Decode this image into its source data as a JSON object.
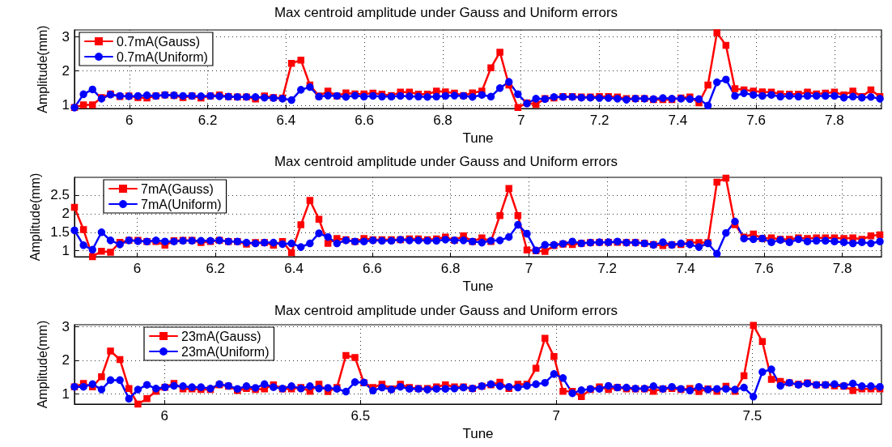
{
  "chart_data": [
    {
      "type": "line",
      "title": "Max centroid amplitude under Gauss and Uniform errors",
      "xlabel": "Tune",
      "ylabel": "Amplitude(mm)",
      "x": [
        5.86,
        5.883,
        5.906,
        5.929,
        5.952,
        5.976,
        5.999,
        6.022,
        6.045,
        6.068,
        6.091,
        6.114,
        6.137,
        6.16,
        6.183,
        6.207,
        6.23,
        6.253,
        6.276,
        6.299,
        6.322,
        6.345,
        6.368,
        6.391,
        6.414,
        6.438,
        6.461,
        6.484,
        6.507,
        6.53,
        6.553,
        6.576,
        6.599,
        6.622,
        6.645,
        6.669,
        6.692,
        6.715,
        6.738,
        6.761,
        6.784,
        6.807,
        6.83,
        6.853,
        6.876,
        6.9,
        6.923,
        6.946,
        6.969,
        6.992,
        7.015,
        7.038,
        7.061,
        7.084,
        7.107,
        7.131,
        7.154,
        7.177,
        7.2,
        7.223,
        7.246,
        7.269,
        7.292,
        7.315,
        7.338,
        7.362,
        7.385,
        7.408,
        7.431,
        7.454,
        7.477,
        7.5,
        7.523,
        7.546,
        7.569,
        7.593,
        7.616,
        7.639,
        7.662,
        7.685,
        7.708,
        7.731,
        7.754,
        7.777,
        7.8,
        7.824,
        7.847,
        7.87,
        7.893,
        7.916
      ],
      "series": [
        {
          "name": "0.7mA(Gauss)",
          "color": "#ff0000",
          "marker": "square",
          "values": [
            0.93,
            1.01,
            1.01,
            1.22,
            1.33,
            1.25,
            1.27,
            1.22,
            1.21,
            1.27,
            1.3,
            1.28,
            1.22,
            1.27,
            1.21,
            1.27,
            1.3,
            1.25,
            1.24,
            1.24,
            1.18,
            1.27,
            1.22,
            1.21,
            2.22,
            2.32,
            1.59,
            1.27,
            1.41,
            1.27,
            1.36,
            1.33,
            1.33,
            1.35,
            1.32,
            1.28,
            1.38,
            1.38,
            1.32,
            1.32,
            1.41,
            1.39,
            1.35,
            1.28,
            1.36,
            1.41,
            2.09,
            2.55,
            1.59,
            0.93,
            1.07,
            1.02,
            1.19,
            1.21,
            1.25,
            1.25,
            1.24,
            1.24,
            1.25,
            1.25,
            1.24,
            1.19,
            1.19,
            1.19,
            1.16,
            1.16,
            1.16,
            1.21,
            1.24,
            1.07,
            1.59,
            3.12,
            2.75,
            1.48,
            1.45,
            1.41,
            1.39,
            1.38,
            1.33,
            1.32,
            1.32,
            1.38,
            1.33,
            1.35,
            1.38,
            1.3,
            1.41,
            1.25,
            1.45,
            1.25
          ]
        },
        {
          "name": "0.7mA(Uniform)",
          "color": "#0000ff",
          "marker": "circle",
          "values": [
            0.93,
            1.32,
            1.46,
            1.19,
            1.31,
            1.27,
            1.26,
            1.27,
            1.29,
            1.27,
            1.3,
            1.29,
            1.27,
            1.27,
            1.26,
            1.27,
            1.26,
            1.25,
            1.24,
            1.24,
            1.24,
            1.22,
            1.21,
            1.19,
            1.15,
            1.45,
            1.53,
            1.25,
            1.28,
            1.27,
            1.24,
            1.28,
            1.25,
            1.27,
            1.25,
            1.25,
            1.27,
            1.26,
            1.25,
            1.24,
            1.25,
            1.27,
            1.28,
            1.27,
            1.24,
            1.3,
            1.25,
            1.5,
            1.68,
            1.32,
            1.05,
            1.19,
            1.18,
            1.24,
            1.24,
            1.24,
            1.22,
            1.22,
            1.21,
            1.21,
            1.19,
            1.16,
            1.19,
            1.19,
            1.18,
            1.21,
            1.19,
            1.19,
            1.18,
            1.18,
            0.99,
            1.67,
            1.75,
            1.27,
            1.35,
            1.3,
            1.27,
            1.3,
            1.25,
            1.27,
            1.25,
            1.27,
            1.27,
            1.27,
            1.27,
            1.22,
            1.25,
            1.22,
            1.24,
            1.19
          ]
        }
      ],
      "xlim": [
        5.86,
        7.92
      ],
      "xticks": [
        6,
        6.2,
        6.4,
        6.6,
        6.8,
        7,
        7.2,
        7.4,
        7.6,
        7.8
      ],
      "ylim": [
        0.9,
        3.2
      ],
      "yticks": [
        1,
        2,
        3
      ],
      "grid": true,
      "legend": "top left",
      "line_style": "solid"
    },
    {
      "type": "line",
      "title": "Max centroid amplitude under Gauss and Uniform errors",
      "xlabel": "Tune",
      "ylabel": "Amplitude(mm)",
      "x": [
        5.84,
        5.863,
        5.886,
        5.909,
        5.932,
        5.956,
        5.979,
        6.002,
        6.025,
        6.048,
        6.071,
        6.094,
        6.117,
        6.14,
        6.163,
        6.187,
        6.21,
        6.233,
        6.256,
        6.279,
        6.302,
        6.325,
        6.348,
        6.371,
        6.394,
        6.418,
        6.441,
        6.464,
        6.487,
        6.51,
        6.533,
        6.556,
        6.579,
        6.602,
        6.625,
        6.649,
        6.672,
        6.695,
        6.718,
        6.741,
        6.764,
        6.787,
        6.81,
        6.833,
        6.856,
        6.88,
        6.903,
        6.926,
        6.949,
        6.972,
        6.995,
        7.018,
        7.041,
        7.064,
        7.087,
        7.111,
        7.134,
        7.157,
        7.18,
        7.203,
        7.226,
        7.249,
        7.272,
        7.295,
        7.318,
        7.342,
        7.365,
        7.388,
        7.411,
        7.434,
        7.457,
        7.48,
        7.503,
        7.526,
        7.549,
        7.573,
        7.596,
        7.619,
        7.642,
        7.665,
        7.688,
        7.711,
        7.734,
        7.757,
        7.78,
        7.804,
        7.827,
        7.85,
        7.873,
        7.896
      ],
      "series": [
        {
          "name": "7mA(Gauss)",
          "color": "#ff0000",
          "marker": "square",
          "values": [
            2.17,
            1.57,
            0.84,
            0.99,
            0.96,
            1.23,
            1.28,
            1.28,
            1.25,
            1.25,
            1.15,
            1.27,
            1.28,
            1.28,
            1.22,
            1.25,
            1.28,
            1.25,
            1.25,
            1.18,
            1.22,
            1.22,
            1.15,
            1.25,
            0.95,
            1.7,
            2.36,
            1.85,
            1.2,
            1.33,
            1.3,
            1.25,
            1.33,
            1.3,
            1.3,
            1.3,
            1.3,
            1.32,
            1.32,
            1.3,
            1.32,
            1.37,
            1.28,
            1.4,
            1.25,
            1.35,
            1.25,
            1.95,
            2.68,
            1.95,
            1.02,
            1.0,
            0.98,
            1.14,
            1.18,
            1.17,
            1.2,
            1.22,
            1.23,
            1.23,
            1.23,
            1.22,
            1.22,
            1.2,
            1.17,
            1.14,
            1.16,
            1.17,
            1.22,
            1.22,
            1.22,
            2.85,
            2.96,
            1.7,
            1.37,
            1.45,
            1.33,
            1.35,
            1.31,
            1.31,
            1.35,
            1.33,
            1.35,
            1.35,
            1.35,
            1.33,
            1.35,
            1.31,
            1.4,
            1.43
          ]
        },
        {
          "name": "7mA(Uniform)",
          "color": "#0000ff",
          "marker": "circle",
          "values": [
            1.55,
            1.15,
            1.03,
            1.5,
            1.28,
            1.17,
            1.28,
            1.26,
            1.25,
            1.28,
            1.25,
            1.25,
            1.27,
            1.27,
            1.27,
            1.27,
            1.28,
            1.25,
            1.25,
            1.22,
            1.2,
            1.22,
            1.22,
            1.18,
            1.2,
            1.1,
            1.2,
            1.47,
            1.37,
            1.2,
            1.28,
            1.25,
            1.25,
            1.28,
            1.27,
            1.27,
            1.3,
            1.28,
            1.28,
            1.27,
            1.27,
            1.3,
            1.28,
            1.28,
            1.25,
            1.22,
            1.27,
            1.28,
            1.37,
            1.7,
            1.46,
            1.01,
            1.16,
            1.16,
            1.19,
            1.25,
            1.2,
            1.22,
            1.23,
            1.23,
            1.25,
            1.22,
            1.22,
            1.2,
            1.16,
            1.23,
            1.16,
            1.2,
            1.17,
            1.1,
            1.2,
            0.92,
            1.48,
            1.79,
            1.33,
            1.31,
            1.33,
            1.23,
            1.29,
            1.23,
            1.31,
            1.25,
            1.27,
            1.27,
            1.25,
            1.23,
            1.2,
            1.23,
            1.2,
            1.25
          ]
        }
      ],
      "xlim": [
        5.84,
        7.9
      ],
      "xticks": [
        6,
        6.2,
        6.4,
        6.6,
        6.8,
        7,
        7.2,
        7.4,
        7.6,
        7.8
      ],
      "ylim": [
        0.84,
        2.98
      ],
      "yticks": [
        1,
        1.5,
        2,
        2.5
      ],
      "grid": true,
      "legend": "top left",
      "line_style": "solid"
    },
    {
      "type": "line",
      "title": "Max centroid amplitude under Gauss and Uniform errors",
      "xlabel": "Tune",
      "ylabel": "Amplitude(mm)",
      "x": [
        5.77,
        5.793,
        5.816,
        5.839,
        5.862,
        5.886,
        5.909,
        5.932,
        5.955,
        5.978,
        6.001,
        6.024,
        6.047,
        6.07,
        6.093,
        6.117,
        6.14,
        6.163,
        6.186,
        6.209,
        6.232,
        6.255,
        6.278,
        6.301,
        6.324,
        6.348,
        6.371,
        6.394,
        6.417,
        6.44,
        6.463,
        6.486,
        6.509,
        6.532,
        6.555,
        6.579,
        6.602,
        6.625,
        6.648,
        6.671,
        6.694,
        6.717,
        6.74,
        6.763,
        6.786,
        6.81,
        6.833,
        6.856,
        6.879,
        6.902,
        6.925,
        6.948,
        6.971,
        6.994,
        7.017,
        7.041,
        7.064,
        7.087,
        7.11,
        7.133,
        7.156,
        7.179,
        7.202,
        7.225,
        7.248,
        7.272,
        7.295,
        7.318,
        7.341,
        7.364,
        7.387,
        7.41,
        7.433,
        7.456,
        7.479,
        7.503,
        7.526,
        7.549,
        7.572,
        7.595,
        7.618,
        7.641,
        7.664,
        7.687,
        7.71,
        7.734,
        7.757,
        7.78,
        7.803,
        7.826
      ],
      "series": [
        {
          "name": "23mA(Gauss)",
          "color": "#ff0000",
          "marker": "square",
          "values": [
            1.21,
            1.31,
            1.21,
            1.51,
            2.27,
            2.02,
            1.16,
            0.7,
            0.86,
            1.08,
            1.2,
            1.31,
            1.15,
            1.15,
            1.13,
            1.13,
            1.27,
            1.23,
            1.1,
            1.16,
            1.13,
            1.15,
            1.27,
            1.15,
            1.15,
            1.19,
            1.08,
            1.29,
            1.07,
            1.19,
            2.14,
            2.08,
            1.33,
            1.19,
            1.29,
            1.15,
            1.29,
            1.19,
            1.16,
            1.16,
            1.21,
            1.27,
            1.21,
            1.21,
            1.16,
            1.23,
            1.27,
            1.35,
            1.16,
            1.29,
            1.29,
            1.76,
            2.65,
            2.11,
            1.08,
            1.08,
            0.92,
            1.13,
            1.21,
            1.13,
            1.19,
            1.15,
            1.15,
            1.15,
            1.08,
            1.15,
            1.16,
            1.13,
            1.16,
            1.07,
            1.15,
            1.08,
            1.23,
            1.08,
            1.54,
            3.03,
            2.55,
            1.43,
            1.37,
            1.33,
            1.29,
            1.33,
            1.27,
            1.27,
            1.24,
            1.23,
            1.1,
            1.15,
            1.15,
            1.15
          ]
        },
        {
          "name": "23mA(Uniform)",
          "color": "#0000ff",
          "marker": "circle",
          "values": [
            1.21,
            1.21,
            1.29,
            1.13,
            1.41,
            1.41,
            0.86,
            1.13,
            1.27,
            1.16,
            1.2,
            1.24,
            1.23,
            1.2,
            1.2,
            1.16,
            1.29,
            1.24,
            1.15,
            1.23,
            1.18,
            1.29,
            1.2,
            1.16,
            1.23,
            1.16,
            1.23,
            1.16,
            1.18,
            1.15,
            1.07,
            1.35,
            1.34,
            1.1,
            1.19,
            1.13,
            1.21,
            1.15,
            1.15,
            1.13,
            1.15,
            1.15,
            1.16,
            1.19,
            1.16,
            1.23,
            1.29,
            1.23,
            1.21,
            1.19,
            1.24,
            1.29,
            1.33,
            1.59,
            1.47,
            1.02,
            1.11,
            1.15,
            1.15,
            1.24,
            1.19,
            1.19,
            1.16,
            1.16,
            1.23,
            1.15,
            1.21,
            1.15,
            1.1,
            1.21,
            1.13,
            1.15,
            1.15,
            1.13,
            1.19,
            0.92,
            1.65,
            1.73,
            1.24,
            1.33,
            1.27,
            1.31,
            1.27,
            1.27,
            1.29,
            1.24,
            1.31,
            1.23,
            1.23,
            1.21
          ]
        }
      ],
      "xlim": [
        5.77,
        7.83
      ],
      "xticks": [
        6,
        6.5,
        7,
        7.5
      ],
      "ylim": [
        0.7,
        3.05
      ],
      "yticks": [
        1,
        2,
        3
      ],
      "grid": true,
      "legend": "top left",
      "line_style": "solid"
    }
  ]
}
